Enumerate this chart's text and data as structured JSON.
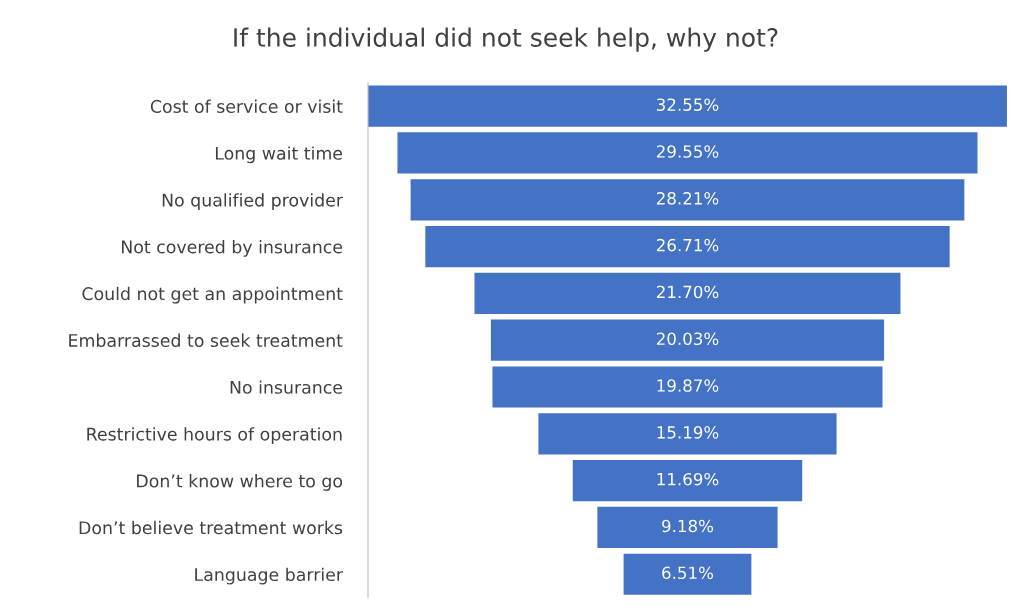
{
  "chart_data": {
    "type": "other",
    "title": "If the individual did not seek help, why not?",
    "categories": [
      "Cost of service or visit",
      "Long wait time",
      "No qualified provider",
      "Not covered by insurance",
      "Could not get an appointment",
      "Embarrassed to seek treatment",
      "No insurance",
      "Restrictive hours of operation",
      "Don’t know where to go",
      "Don’t believe treatment works",
      "Language barrier"
    ],
    "values": [
      32.55,
      29.55,
      28.21,
      26.71,
      21.7,
      20.03,
      19.87,
      15.19,
      11.69,
      9.18,
      6.51
    ],
    "value_labels": [
      "32.55%",
      "29.55%",
      "28.21%",
      "26.71%",
      "21.70%",
      "20.03%",
      "19.87%",
      "15.19%",
      "11.69%",
      "9.18%",
      "6.51%"
    ],
    "color": "#4472c4"
  }
}
